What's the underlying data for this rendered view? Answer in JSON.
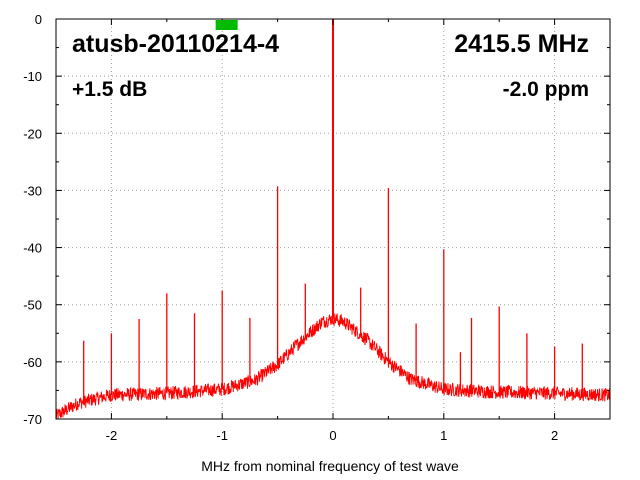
{
  "chart_data": {
    "type": "line",
    "title": "",
    "xlabel": "MHz from nominal frequency of test wave",
    "ylabel": "",
    "xlim": [
      -2.5,
      2.5
    ],
    "ylim": [
      -70,
      0
    ],
    "grid": true,
    "x_ticks": [
      -2,
      -1,
      0,
      1,
      2
    ],
    "y_ticks": [
      0,
      -10,
      -20,
      -30,
      -40,
      -50,
      -60,
      -70
    ],
    "series": [
      {
        "color": "#ff0000",
        "noise_floor": [
          [
            -2.5,
            -69.5
          ],
          [
            -2.3,
            -67.2
          ],
          [
            -2.0,
            -65.8
          ],
          [
            -1.5,
            -65.5
          ],
          [
            -1.0,
            -64.8
          ],
          [
            -0.7,
            -63.2
          ],
          [
            -0.5,
            -60.5
          ],
          [
            -0.3,
            -56.5
          ],
          [
            -0.1,
            -53.0
          ],
          [
            0.0,
            -52.4
          ],
          [
            0.1,
            -53.0
          ],
          [
            0.3,
            -56.0
          ],
          [
            0.5,
            -60.0
          ],
          [
            0.7,
            -63.0
          ],
          [
            1.0,
            -64.8
          ],
          [
            1.5,
            -65.3
          ],
          [
            2.0,
            -65.5
          ],
          [
            2.5,
            -65.8
          ]
        ],
        "spurs": [
          {
            "x": -2.25,
            "y": -56.3
          },
          {
            "x": -2.0,
            "y": -55.0
          },
          {
            "x": -1.75,
            "y": -52.5
          },
          {
            "x": -1.5,
            "y": -48.0
          },
          {
            "x": -1.25,
            "y": -51.5
          },
          {
            "x": -1.0,
            "y": -47.5
          },
          {
            "x": -0.75,
            "y": -52.3
          },
          {
            "x": -0.5,
            "y": -29.3
          },
          {
            "x": -0.25,
            "y": -46.3
          },
          {
            "x": 0.0,
            "y": 0
          },
          {
            "x": 0.25,
            "y": -47.0
          },
          {
            "x": 0.5,
            "y": -29.6
          },
          {
            "x": 0.75,
            "y": -53.3
          },
          {
            "x": 1.0,
            "y": -40.3
          },
          {
            "x": 1.15,
            "y": -58.3
          },
          {
            "x": 1.25,
            "y": -52.3
          },
          {
            "x": 1.5,
            "y": -50.3
          },
          {
            "x": 1.75,
            "y": -55.0
          },
          {
            "x": 2.0,
            "y": -57.3
          },
          {
            "x": 2.25,
            "y": -56.8
          }
        ]
      }
    ]
  },
  "overlay": {
    "device": "atusb-20110214-4",
    "frequency": "2415.5 MHz",
    "gain": "+1.5 dB",
    "offset": "-2.0 ppm",
    "indicator_color": "#00bb00",
    "indicator_x": -0.96
  }
}
